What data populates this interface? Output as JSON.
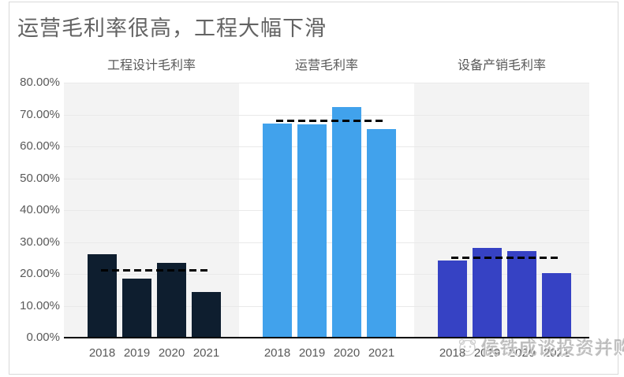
{
  "title": {
    "text": "运营毛利率很高，工程大幅下滑"
  },
  "watermark": {
    "icon": "cartoon-face-logo",
    "text": "侯铁成谈投资并购"
  },
  "chart_data": {
    "type": "bar",
    "title": "运营毛利率很高，工程大幅下滑",
    "categories": [
      "2018",
      "2019",
      "2020",
      "2021"
    ],
    "ylabel": "",
    "xlabel": "",
    "ylim": [
      0,
      80
    ],
    "ytick_labels": [
      "80.00%",
      "70.00%",
      "60.00%",
      "50.00%",
      "40.00%",
      "30.00%",
      "20.00%",
      "10.00%",
      "0.00%"
    ],
    "grid": true,
    "legend_position": "none",
    "panels": [
      {
        "label": "工程设计毛利率",
        "color": "#0e1e2f",
        "background": "#f3f3f3",
        "values": [
          26.2,
          18.5,
          23.5,
          14.4
        ],
        "average_line": 21.0
      },
      {
        "label": "运营毛利率",
        "color": "#41a2ec",
        "background": "#ffffff",
        "values": [
          67.1,
          66.9,
          72.4,
          65.5
        ],
        "average_line": 68.0
      },
      {
        "label": "设备产销毛利率",
        "color": "#3642c4",
        "background": "#f3f3f3",
        "values": [
          24.3,
          28.1,
          27.2,
          20.2
        ],
        "average_line": 25.0
      }
    ]
  }
}
